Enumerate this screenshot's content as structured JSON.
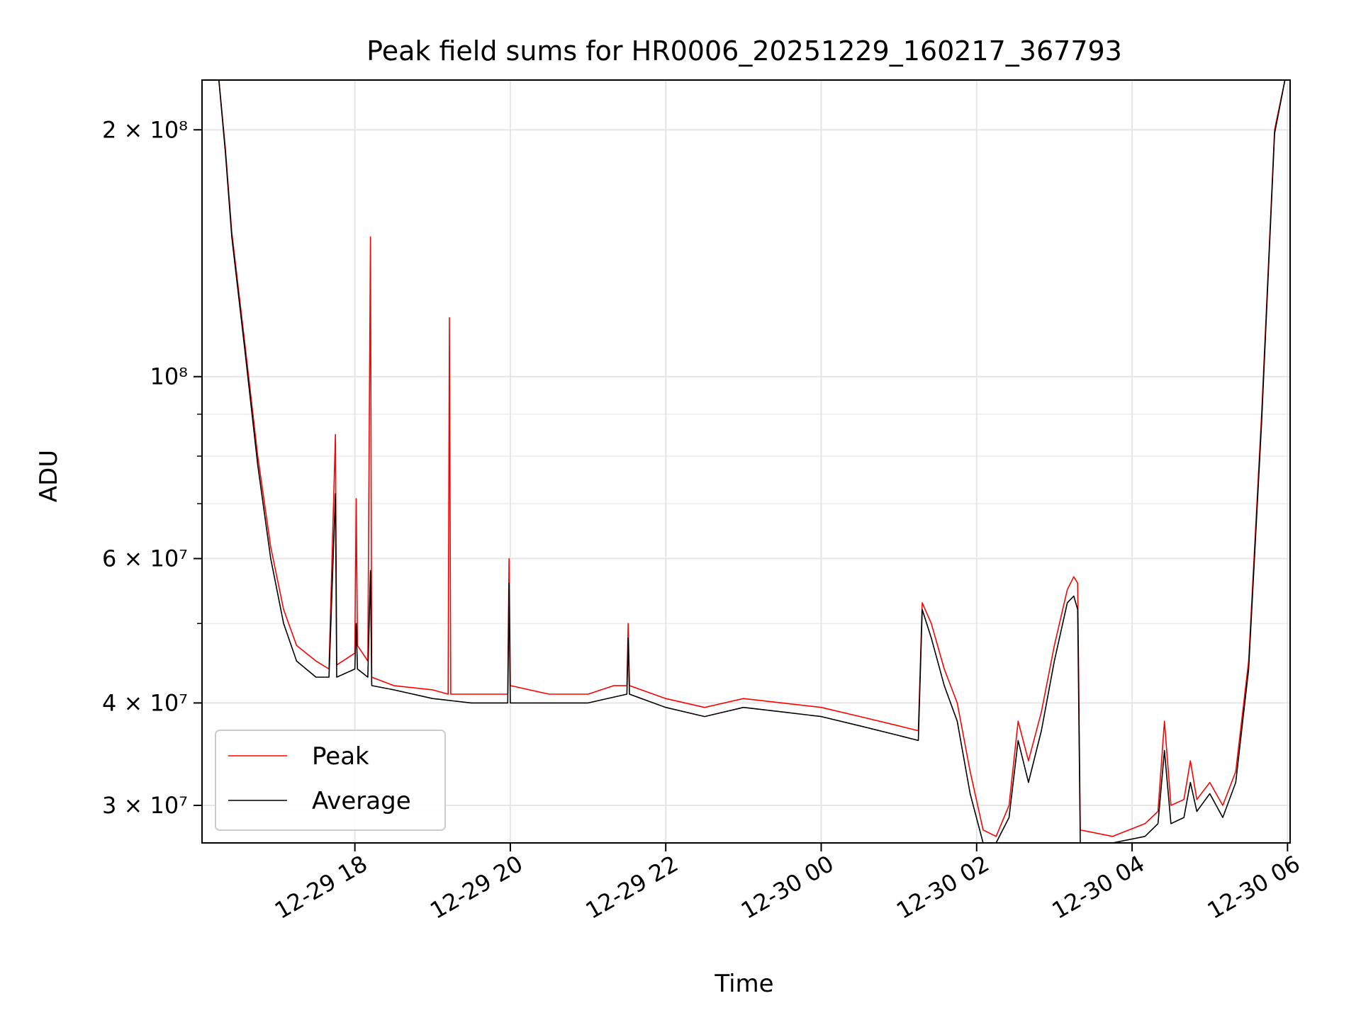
{
  "chart_data": {
    "type": "line",
    "title": "Peak field sums for HR0006_20251229_160217_367793",
    "xlabel": "Time",
    "ylabel": "ADU",
    "y_scale": "log",
    "ylim": [
      27000000,
      230000000
    ],
    "xlim": [
      "2025-12-29 16:02",
      "2025-12-30 06:02"
    ],
    "grid": true,
    "legend_position": "lower-left",
    "x_ticks": [
      {
        "t": "2025-12-29 18:00",
        "label": "12-29 18"
      },
      {
        "t": "2025-12-29 20:00",
        "label": "12-29 20"
      },
      {
        "t": "2025-12-29 22:00",
        "label": "12-29 22"
      },
      {
        "t": "2025-12-30 00:00",
        "label": "12-30 00"
      },
      {
        "t": "2025-12-30 02:00",
        "label": "12-30 02"
      },
      {
        "t": "2025-12-30 04:00",
        "label": "12-30 04"
      },
      {
        "t": "2025-12-30 06:00",
        "label": "12-30 06"
      }
    ],
    "y_ticks_major": [
      {
        "v": 30000000,
        "label": "3 × 10⁷"
      },
      {
        "v": 40000000,
        "label": "4 × 10⁷"
      },
      {
        "v": 60000000,
        "label": "6 × 10⁷"
      },
      {
        "v": 100000000,
        "label": "10⁸"
      },
      {
        "v": 200000000,
        "label": "2 × 10⁸"
      }
    ],
    "y_ticks_minor": [
      50000000,
      70000000,
      80000000,
      90000000
    ],
    "series": [
      {
        "name": "Peak",
        "color": "#ff0000",
        "points": [
          [
            "2025-12-29 16:02",
            230000000
          ],
          [
            "2025-12-29 16:15",
            230000000
          ],
          [
            "2025-12-29 16:20",
            190000000
          ],
          [
            "2025-12-29 16:25",
            150000000
          ],
          [
            "2025-12-29 16:35",
            110000000
          ],
          [
            "2025-12-29 16:45",
            80000000
          ],
          [
            "2025-12-29 16:55",
            62000000
          ],
          [
            "2025-12-29 17:05",
            52000000
          ],
          [
            "2025-12-29 17:15",
            47000000
          ],
          [
            "2025-12-29 17:30",
            45000000
          ],
          [
            "2025-12-29 17:40",
            44000000
          ],
          [
            "2025-12-29 17:45",
            85000000
          ],
          [
            "2025-12-29 17:46",
            44500000
          ],
          [
            "2025-12-29 18:00",
            46000000
          ],
          [
            "2025-12-29 18:01",
            71000000
          ],
          [
            "2025-12-29 18:02",
            47000000
          ],
          [
            "2025-12-29 18:10",
            45000000
          ],
          [
            "2025-12-29 18:12",
            148000000
          ],
          [
            "2025-12-29 18:13",
            43000000
          ],
          [
            "2025-12-29 18:30",
            42000000
          ],
          [
            "2025-12-29 19:00",
            41500000
          ],
          [
            "2025-12-29 19:12",
            41000000
          ],
          [
            "2025-12-29 19:13",
            118000000
          ],
          [
            "2025-12-29 19:14",
            41000000
          ],
          [
            "2025-12-29 19:40",
            41000000
          ],
          [
            "2025-12-29 19:58",
            41000000
          ],
          [
            "2025-12-29 19:59",
            60000000
          ],
          [
            "2025-12-29 20:00",
            42000000
          ],
          [
            "2025-12-29 20:30",
            41000000
          ],
          [
            "2025-12-29 21:00",
            41000000
          ],
          [
            "2025-12-29 21:20",
            42000000
          ],
          [
            "2025-12-29 21:30",
            42000000
          ],
          [
            "2025-12-29 21:31",
            50000000
          ],
          [
            "2025-12-29 21:32",
            42000000
          ],
          [
            "2025-12-29 22:00",
            40500000
          ],
          [
            "2025-12-29 22:30",
            39500000
          ],
          [
            "2025-12-29 23:00",
            40500000
          ],
          [
            "2025-12-29 23:30",
            40000000
          ],
          [
            "2025-12-30 00:00",
            39500000
          ],
          [
            "2025-12-30 00:30",
            38500000
          ],
          [
            "2025-12-30 01:00",
            37500000
          ],
          [
            "2025-12-30 01:15",
            37000000
          ],
          [
            "2025-12-30 01:18",
            53000000
          ],
          [
            "2025-12-30 01:25",
            50000000
          ],
          [
            "2025-12-30 01:35",
            44000000
          ],
          [
            "2025-12-30 01:45",
            40000000
          ],
          [
            "2025-12-30 01:55",
            33000000
          ],
          [
            "2025-12-30 02:05",
            28000000
          ],
          [
            "2025-12-30 02:15",
            27500000
          ],
          [
            "2025-12-30 02:25",
            30000000
          ],
          [
            "2025-12-30 02:32",
            38000000
          ],
          [
            "2025-12-30 02:40",
            34000000
          ],
          [
            "2025-12-30 02:50",
            39000000
          ],
          [
            "2025-12-30 03:00",
            47000000
          ],
          [
            "2025-12-30 03:10",
            55000000
          ],
          [
            "2025-12-30 03:15",
            57000000
          ],
          [
            "2025-12-30 03:18",
            56000000
          ],
          [
            "2025-12-30 03:20",
            28000000
          ],
          [
            "2025-12-30 03:45",
            27500000
          ],
          [
            "2025-12-30 04:10",
            28500000
          ],
          [
            "2025-12-30 04:20",
            29500000
          ],
          [
            "2025-12-30 04:25",
            38000000
          ],
          [
            "2025-12-30 04:30",
            30000000
          ],
          [
            "2025-12-30 04:40",
            30500000
          ],
          [
            "2025-12-30 04:45",
            34000000
          ],
          [
            "2025-12-30 04:50",
            30500000
          ],
          [
            "2025-12-30 05:00",
            32000000
          ],
          [
            "2025-12-30 05:10",
            30000000
          ],
          [
            "2025-12-30 05:20",
            33000000
          ],
          [
            "2025-12-30 05:30",
            45000000
          ],
          [
            "2025-12-30 05:40",
            90000000
          ],
          [
            "2025-12-30 05:50",
            200000000
          ],
          [
            "2025-12-30 05:58",
            230000000
          ]
        ]
      },
      {
        "name": "Average",
        "color": "#000000",
        "points": [
          [
            "2025-12-29 16:02",
            230000000
          ],
          [
            "2025-12-29 16:15",
            230000000
          ],
          [
            "2025-12-29 16:20",
            188000000
          ],
          [
            "2025-12-29 16:25",
            148000000
          ],
          [
            "2025-12-29 16:35",
            108000000
          ],
          [
            "2025-12-29 16:45",
            78000000
          ],
          [
            "2025-12-29 16:55",
            60000000
          ],
          [
            "2025-12-29 17:05",
            50000000
          ],
          [
            "2025-12-29 17:15",
            45000000
          ],
          [
            "2025-12-29 17:30",
            43000000
          ],
          [
            "2025-12-29 17:40",
            43000000
          ],
          [
            "2025-12-29 17:45",
            72000000
          ],
          [
            "2025-12-29 17:46",
            43000000
          ],
          [
            "2025-12-29 18:00",
            44000000
          ],
          [
            "2025-12-29 18:01",
            50000000
          ],
          [
            "2025-12-29 18:02",
            44000000
          ],
          [
            "2025-12-29 18:10",
            43000000
          ],
          [
            "2025-12-29 18:12",
            58000000
          ],
          [
            "2025-12-29 18:13",
            42000000
          ],
          [
            "2025-12-29 18:30",
            41500000
          ],
          [
            "2025-12-29 19:00",
            40500000
          ],
          [
            "2025-12-29 19:30",
            40000000
          ],
          [
            "2025-12-29 19:58",
            40000000
          ],
          [
            "2025-12-29 19:59",
            56000000
          ],
          [
            "2025-12-29 20:00",
            40000000
          ],
          [
            "2025-12-29 20:30",
            40000000
          ],
          [
            "2025-12-29 21:00",
            40000000
          ],
          [
            "2025-12-29 21:30",
            41000000
          ],
          [
            "2025-12-29 21:31",
            48000000
          ],
          [
            "2025-12-29 21:32",
            41000000
          ],
          [
            "2025-12-29 22:00",
            39500000
          ],
          [
            "2025-12-29 22:30",
            38500000
          ],
          [
            "2025-12-29 23:00",
            39500000
          ],
          [
            "2025-12-29 23:30",
            39000000
          ],
          [
            "2025-12-30 00:00",
            38500000
          ],
          [
            "2025-12-30 00:30",
            37500000
          ],
          [
            "2025-12-30 01:00",
            36500000
          ],
          [
            "2025-12-30 01:15",
            36000000
          ],
          [
            "2025-12-30 01:18",
            52000000
          ],
          [
            "2025-12-30 01:25",
            48000000
          ],
          [
            "2025-12-30 01:35",
            42000000
          ],
          [
            "2025-12-30 01:45",
            38000000
          ],
          [
            "2025-12-30 01:55",
            31000000
          ],
          [
            "2025-12-30 02:05",
            27000000
          ],
          [
            "2025-12-30 02:15",
            27000000
          ],
          [
            "2025-12-30 02:25",
            29000000
          ],
          [
            "2025-12-30 02:32",
            36000000
          ],
          [
            "2025-12-30 02:40",
            32000000
          ],
          [
            "2025-12-30 02:50",
            37000000
          ],
          [
            "2025-12-30 03:00",
            45000000
          ],
          [
            "2025-12-30 03:10",
            53000000
          ],
          [
            "2025-12-30 03:15",
            54000000
          ],
          [
            "2025-12-30 03:18",
            52000000
          ],
          [
            "2025-12-30 03:20",
            27000000
          ],
          [
            "2025-12-30 03:45",
            27000000
          ],
          [
            "2025-12-30 04:10",
            27500000
          ],
          [
            "2025-12-30 04:20",
            28500000
          ],
          [
            "2025-12-30 04:25",
            35000000
          ],
          [
            "2025-12-30 04:30",
            28500000
          ],
          [
            "2025-12-30 04:40",
            29000000
          ],
          [
            "2025-12-30 04:45",
            32000000
          ],
          [
            "2025-12-30 04:50",
            29500000
          ],
          [
            "2025-12-30 05:00",
            31000000
          ],
          [
            "2025-12-30 05:10",
            29000000
          ],
          [
            "2025-12-30 05:20",
            32000000
          ],
          [
            "2025-12-30 05:30",
            44000000
          ],
          [
            "2025-12-30 05:40",
            88000000
          ],
          [
            "2025-12-30 05:50",
            198000000
          ],
          [
            "2025-12-30 05:58",
            230000000
          ]
        ]
      }
    ]
  }
}
